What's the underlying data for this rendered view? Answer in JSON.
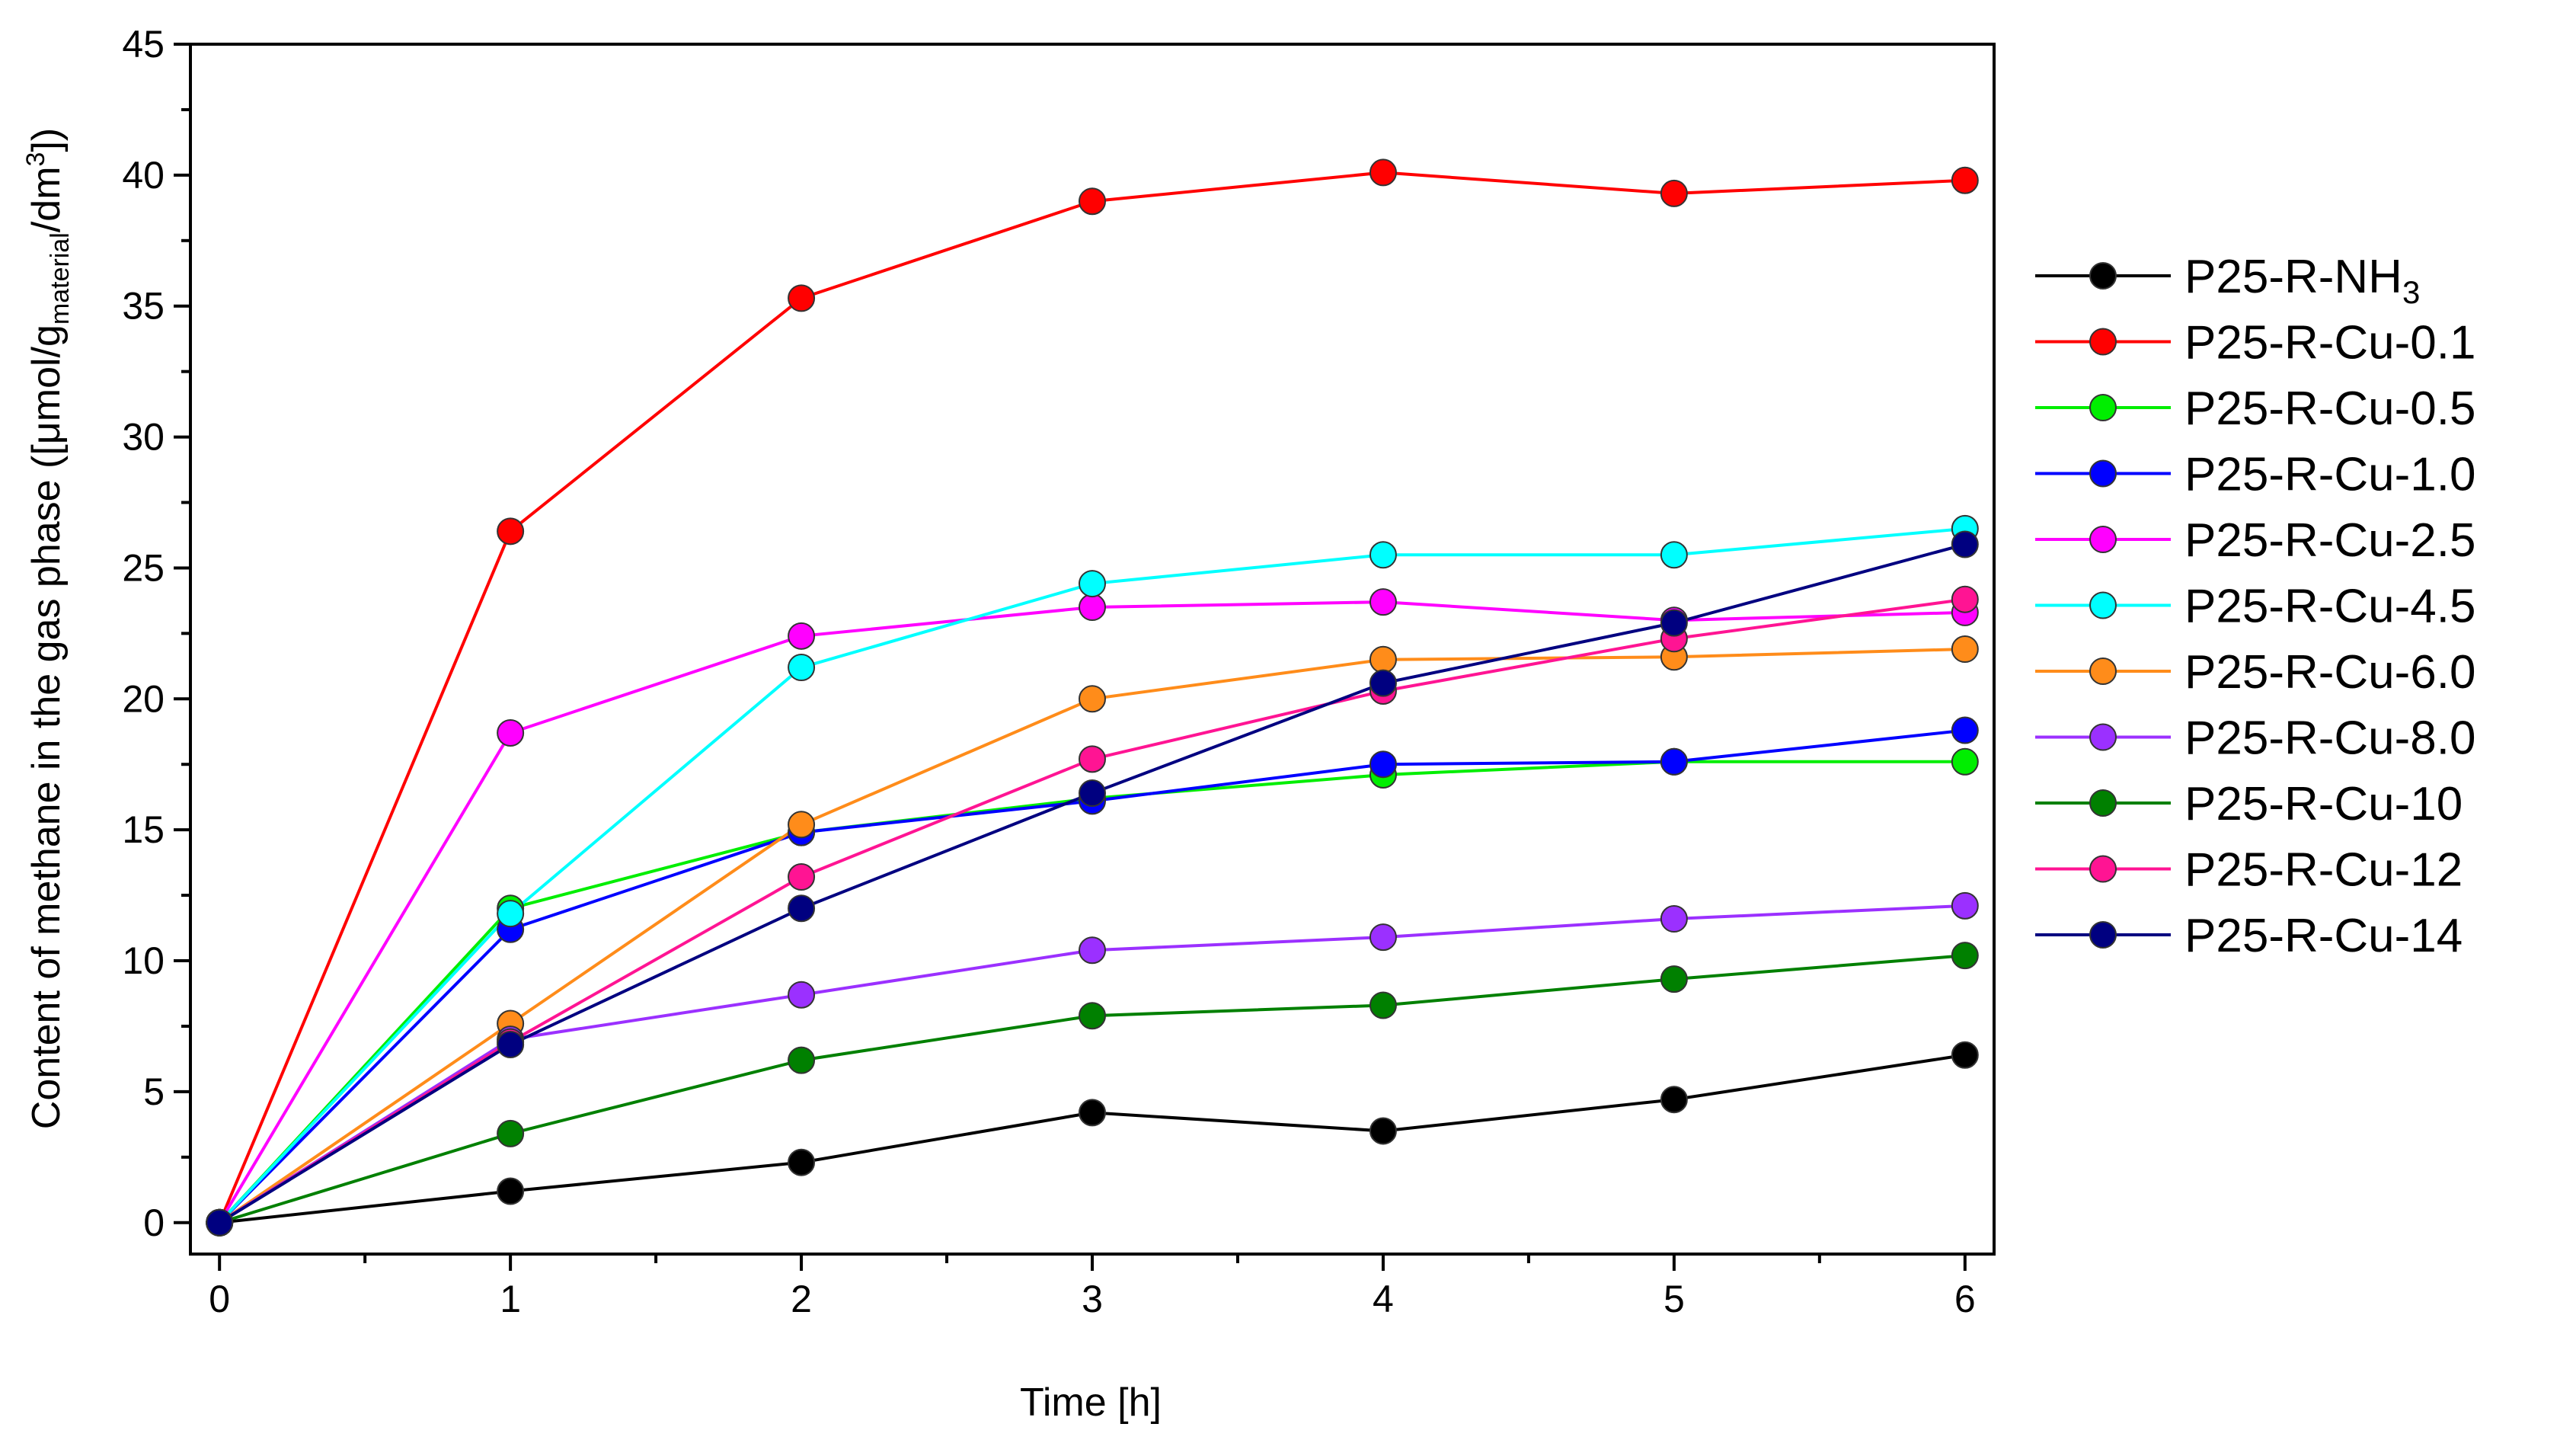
{
  "chart_data": {
    "type": "line",
    "xlabel": "Time [h]",
    "ylabel": {
      "prefix": "Content of methane in the gas phase ([",
      "mu": "μ",
      "mid": "mol/g",
      "sub": "material",
      "slash": "/dm",
      "sup": "3",
      "suffix": "])"
    },
    "x": [
      0,
      1,
      2,
      3,
      4,
      5,
      6
    ],
    "xlim": [
      -0.1,
      6.1
    ],
    "ylim": [
      -1.2,
      45
    ],
    "xticks": [
      0,
      1,
      2,
      3,
      4,
      5,
      6
    ],
    "yticks": [
      0,
      5,
      10,
      15,
      20,
      25,
      30,
      35,
      40,
      45
    ],
    "grid": false,
    "legend_position": "right",
    "series": [
      {
        "name": "P25-R-NH",
        "sub": "3",
        "color": "#000000",
        "values": [
          0,
          1.2,
          2.3,
          4.2,
          3.5,
          4.7,
          6.4
        ]
      },
      {
        "name": "P25-R-Cu-0.1",
        "sub": "",
        "color": "#ff0000",
        "values": [
          0,
          26.4,
          35.3,
          39.0,
          40.1,
          39.3,
          39.8
        ]
      },
      {
        "name": "P25-R-Cu-0.5",
        "sub": "",
        "color": "#00ee00",
        "values": [
          0,
          12.0,
          14.9,
          16.2,
          17.1,
          17.6,
          17.6
        ]
      },
      {
        "name": "P25-R-Cu-1.0",
        "sub": "",
        "color": "#0000ff",
        "values": [
          0,
          11.2,
          14.9,
          16.1,
          17.5,
          17.6,
          18.8
        ]
      },
      {
        "name": "P25-R-Cu-2.5",
        "sub": "",
        "color": "#ff00ff",
        "values": [
          0,
          18.7,
          22.4,
          23.5,
          23.7,
          23.0,
          23.3
        ]
      },
      {
        "name": "P25-R-Cu-4.5",
        "sub": "",
        "color": "#00ffff",
        "values": [
          0,
          11.8,
          21.2,
          24.4,
          25.5,
          25.5,
          26.5
        ]
      },
      {
        "name": "P25-R-Cu-6.0",
        "sub": "",
        "color": "#ff8c1a",
        "values": [
          0,
          7.6,
          15.2,
          20.0,
          21.5,
          21.6,
          21.9
        ]
      },
      {
        "name": "P25-R-Cu-8.0",
        "sub": "",
        "color": "#9b30ff",
        "values": [
          0,
          7.0,
          8.7,
          10.4,
          10.9,
          11.6,
          12.1
        ]
      },
      {
        "name": "P25-R-Cu-10",
        "sub": "",
        "color": "#008000",
        "values": [
          0,
          3.4,
          6.2,
          7.9,
          8.3,
          9.3,
          10.2
        ]
      },
      {
        "name": "P25-R-Cu-12",
        "sub": "",
        "color": "#ff1493",
        "values": [
          0,
          6.9,
          13.2,
          17.7,
          20.3,
          22.3,
          23.8
        ]
      },
      {
        "name": "P25-R-Cu-14",
        "sub": "",
        "color": "#000080",
        "values": [
          0,
          6.8,
          12.0,
          16.4,
          20.6,
          22.9,
          25.9
        ]
      }
    ]
  }
}
